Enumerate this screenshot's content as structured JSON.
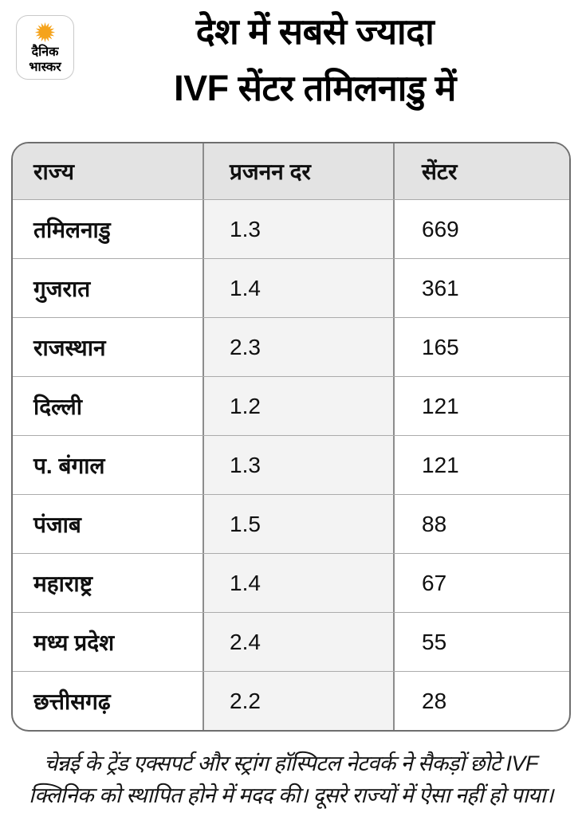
{
  "logo": {
    "line1": "दैनिक",
    "line2": "भास्कर",
    "sun_color": "#F5A31B"
  },
  "title": {
    "line1": "देश में सबसे ज्यादा",
    "line2": "IVF सेंटर तमिलनाडु में"
  },
  "table": {
    "headers": [
      "राज्य",
      "प्रजनन दर",
      "सेंटर"
    ],
    "rows": [
      [
        "तमिलनाडु",
        "1.3",
        "669"
      ],
      [
        "गुजरात",
        "1.4",
        "361"
      ],
      [
        "राजस्थान",
        "2.3",
        "165"
      ],
      [
        "दिल्ली",
        "1.2",
        "121"
      ],
      [
        "प. बंगाल",
        "1.3",
        "121"
      ],
      [
        "पंजाब",
        "1.5",
        "88"
      ],
      [
        "महाराष्ट्र",
        "1.4",
        "67"
      ],
      [
        "मध्य प्रदेश",
        "2.4",
        "55"
      ],
      [
        "छत्तीसगढ़",
        "2.2",
        "28"
      ]
    ]
  },
  "footer": {
    "line1": "चेन्नई के ट्रेंड एक्सपर्ट और स्ट्रांग हॉस्पिटल नेटवर्क ने सैकड़ों छोटे IVF",
    "line2": "क्लिनिक को स्थापित होने में मदद की। दूसरे राज्यों में ऐसा नहीं हो पाया।"
  },
  "colors": {
    "header_row_bg": "#e3e3e3",
    "middle_column_bg": "#f3f3f3",
    "outer_border": "#6e6e6e",
    "column_divider": "#8c8c8c",
    "row_divider": "#ababab",
    "sun_orange": "#F5A31B",
    "text": "#101010"
  },
  "chart_data": {
    "type": "table",
    "title": "देश में सबसे ज्यादा IVF सेंटर तमिलनाडु में",
    "columns": [
      "राज्य",
      "प्रजनन दर",
      "सेंटर"
    ],
    "rows": [
      {
        "state": "तमिलनाडु",
        "fertility_rate": 1.3,
        "centers": 669
      },
      {
        "state": "गुजरात",
        "fertility_rate": 1.4,
        "centers": 361
      },
      {
        "state": "राजस्थान",
        "fertility_rate": 2.3,
        "centers": 165
      },
      {
        "state": "दिल्ली",
        "fertility_rate": 1.2,
        "centers": 121
      },
      {
        "state": "प. बंगाल",
        "fertility_rate": 1.3,
        "centers": 121
      },
      {
        "state": "पंजाब",
        "fertility_rate": 1.5,
        "centers": 88
      },
      {
        "state": "महाराष्ट्र",
        "fertility_rate": 1.4,
        "centers": 67
      },
      {
        "state": "मध्य प्रदेश",
        "fertility_rate": 2.4,
        "centers": 55
      },
      {
        "state": "छत्तीसगढ़",
        "fertility_rate": 2.2,
        "centers": 28
      }
    ],
    "note": "चेन्नई के ट्रेंड एक्सपर्ट और स्ट्रांग हॉस्पिटल नेटवर्क ने सैकड़ों छोटे IVF क्लिनिक को स्थापित होने में मदद की। दूसरे राज्यों में ऐसा नहीं हो पाया।"
  }
}
